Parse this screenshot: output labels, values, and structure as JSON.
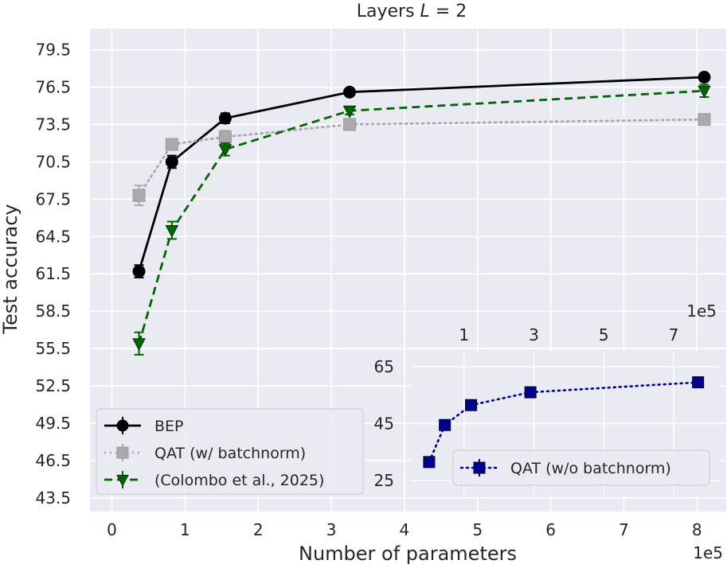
{
  "chart_data": [
    {
      "type": "line",
      "title": "Layers L = 2",
      "title_prefix": "Layers ",
      "title_var": "L",
      "title_suffix": " = 2",
      "xlabel": "Number of parameters",
      "ylabel": "Test accuracy",
      "x_scale_label": "1e5",
      "x_ticks": [
        "0",
        "1",
        "2",
        "3",
        "4",
        "5",
        "6",
        "7",
        "8"
      ],
      "xlim": [
        -0.3,
        8.4
      ],
      "y_ticks": [
        "43.5",
        "46.5",
        "49.5",
        "52.5",
        "55.5",
        "58.5",
        "61.5",
        "64.5",
        "67.5",
        "70.5",
        "73.5",
        "76.5",
        "79.5"
      ],
      "ylim": [
        42.4,
        81.2
      ],
      "grid": true,
      "legend_position": "bottom-left",
      "series": [
        {
          "name": "BEP",
          "color": "#000000",
          "marker": "circle",
          "linestyle": "solid",
          "x": [
            0.37,
            0.82,
            1.55,
            3.25,
            8.1
          ],
          "y": [
            61.7,
            70.5,
            74.0,
            76.1,
            77.3
          ],
          "err": [
            0.5,
            0.5,
            0.4,
            0.2,
            0.2
          ]
        },
        {
          "name": "QAT (w/ batchnorm)",
          "color": "#aaaaaa",
          "marker": "square",
          "linestyle": "dotted",
          "x": [
            0.37,
            0.82,
            1.55,
            3.25,
            8.1
          ],
          "y": [
            67.8,
            71.9,
            72.5,
            73.5,
            73.9
          ],
          "err": [
            0.8,
            0.4,
            0.5,
            0.2,
            0.2
          ]
        },
        {
          "name": "(Colombo et al., 2025)",
          "color": "#006400",
          "marker": "triangle-down",
          "linestyle": "dashed",
          "x": [
            0.37,
            0.82,
            1.55,
            3.25,
            8.1
          ],
          "y": [
            55.9,
            65.0,
            71.5,
            74.6,
            76.2
          ],
          "err": [
            0.9,
            0.7,
            0.5,
            0.3,
            0.5
          ]
        }
      ]
    },
    {
      "type": "line",
      "inset": true,
      "x_scale_label": "1e5",
      "x_ticks": [
        "1",
        "3",
        "5",
        "7"
      ],
      "xlim": [
        -0.5,
        8.3
      ],
      "y_ticks": [
        "25",
        "45",
        "65"
      ],
      "ylim": [
        20,
        70
      ],
      "legend_position": "lower-right",
      "series": [
        {
          "name": "QAT (w/o batchnorm)",
          "color": "#00008b",
          "marker": "square",
          "linestyle": "dotted",
          "x": [
            0.0,
            0.45,
            1.2,
            2.9,
            7.7
          ],
          "y": [
            31.5,
            44.5,
            51.5,
            56.0,
            59.5
          ],
          "err": [
            0.5,
            0.5,
            0.5,
            0.5,
            0.5
          ]
        }
      ]
    }
  ]
}
